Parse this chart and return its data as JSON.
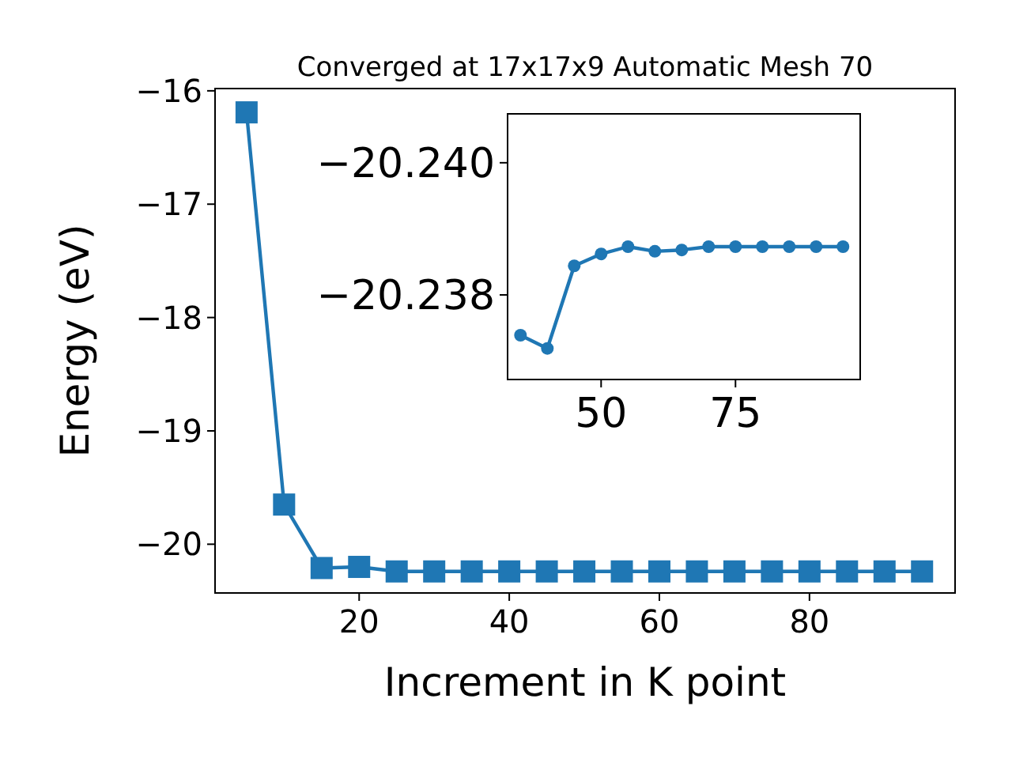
{
  "chart_data": [
    {
      "type": "line",
      "title": "Converged at 17x17x9 Automatic Mesh 70",
      "xlabel": "Increment in K point",
      "ylabel": "Energy (eV)",
      "marker": "square",
      "x": [
        5,
        10,
        15,
        20,
        25,
        30,
        35,
        40,
        45,
        50,
        55,
        60,
        65,
        70,
        75,
        80,
        85,
        90,
        95
      ],
      "series": [
        {
          "color": "#1f77b4",
          "values": [
            -16.19,
            -19.65,
            -20.21,
            -20.2,
            -20.24,
            -20.24,
            -20.24,
            -20.24,
            -20.24,
            -20.24,
            -20.24,
            -20.24,
            -20.24,
            -20.24,
            -20.24,
            -20.24,
            -20.24,
            -20.24,
            -20.24
          ]
        }
      ],
      "xlim": [
        0.8,
        99.4
      ],
      "xticks": [
        20,
        40,
        60,
        80
      ],
      "ylim": [
        -20.43,
        -15.98
      ],
      "yticks": [
        {
          "value": -20,
          "label": "−20"
        },
        {
          "value": -19,
          "label": "−19"
        },
        {
          "value": -18,
          "label": "−18"
        },
        {
          "value": -17,
          "label": "−17"
        },
        {
          "value": -16,
          "label": "−16"
        }
      ]
    },
    {
      "type": "line",
      "marker": "circle",
      "x": [
        35,
        40,
        45,
        50,
        55,
        60,
        65,
        70,
        75,
        80,
        85,
        90,
        95
      ],
      "series": [
        {
          "color": "#1f77b4",
          "values": [
            -20.23739,
            -20.23719,
            -20.23844,
            -20.23862,
            -20.23873,
            -20.23866,
            -20.23868,
            -20.23873,
            -20.23873,
            -20.23873,
            -20.23873,
            -20.23873,
            -20.23873
          ]
        }
      ],
      "xlim": [
        32.6,
        98.2
      ],
      "xticks": [
        50,
        75
      ],
      "ylim": [
        -20.23672,
        -20.24074
      ],
      "yticks": [
        {
          "value": -20.238,
          "label": "−20.238"
        },
        {
          "value": -20.24,
          "label": "−20.240"
        }
      ]
    }
  ]
}
